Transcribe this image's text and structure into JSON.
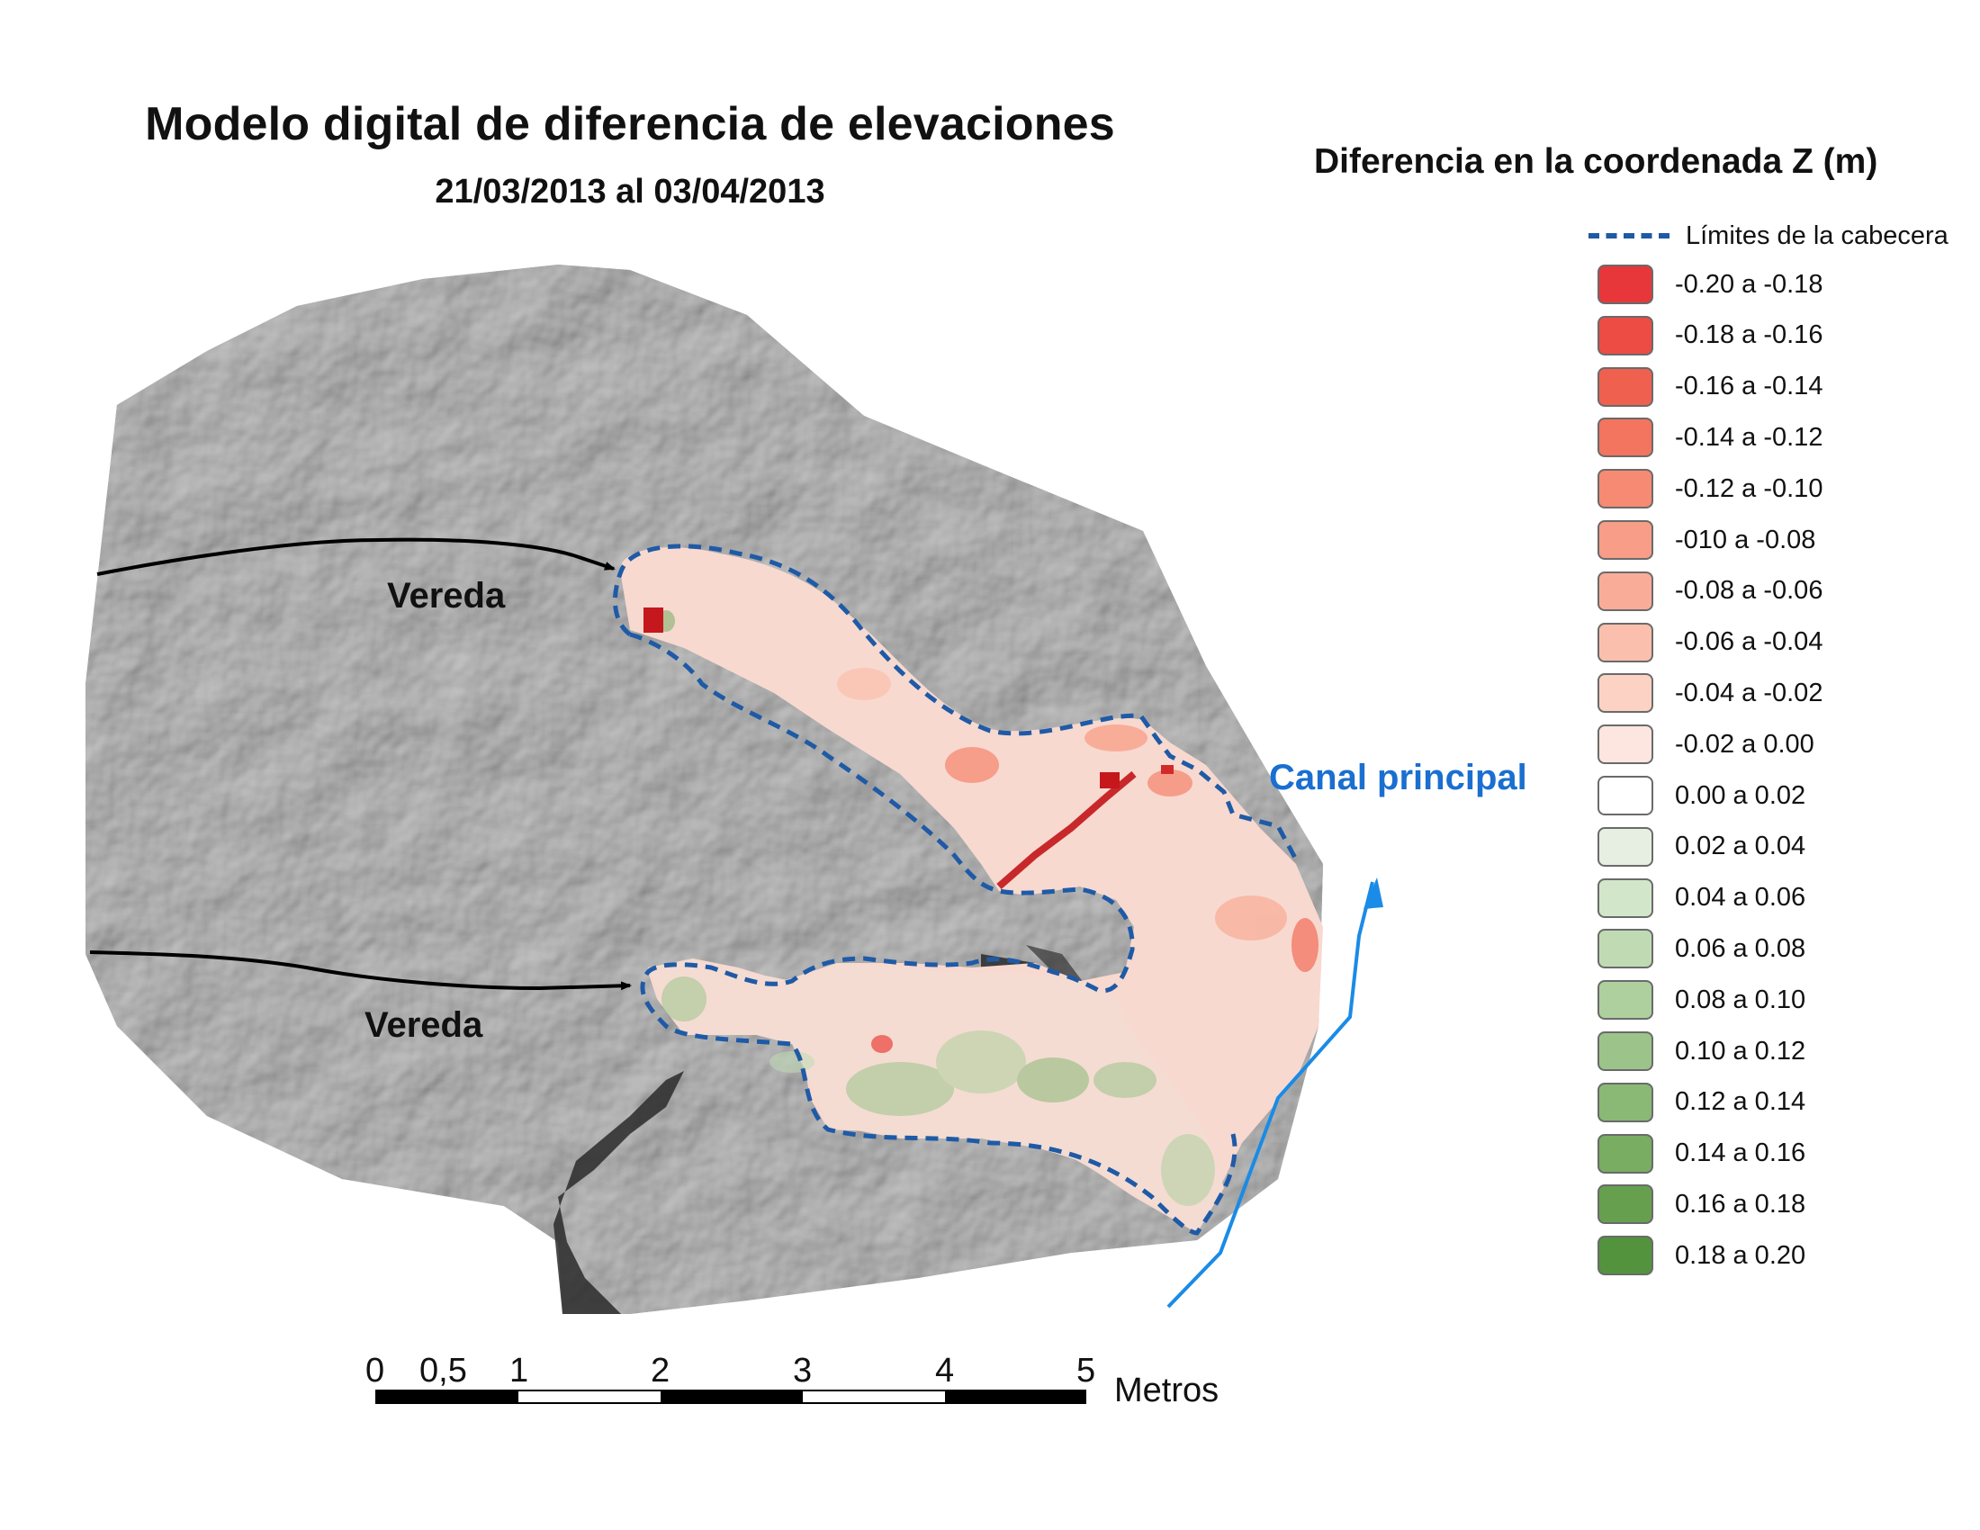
{
  "title": "Modelo digital de diferencia de elevaciones",
  "subtitle": "21/03/2013 al 03/04/2013",
  "legend": {
    "title": "Diferencia en la coordenada Z (m)",
    "boundary_label": "Límites de la cabecera",
    "boundary_color": "#1f5aa6",
    "classes": [
      {
        "label": "-0.20 a -0.18",
        "color": "#e8373a"
      },
      {
        "label": "-0.18 a -0.16",
        "color": "#ec4c44"
      },
      {
        "label": "-0.16 a -0.14",
        "color": "#f0604f"
      },
      {
        "label": "-0.14 a -0.12",
        "color": "#f3745f"
      },
      {
        "label": "-0.12 a -0.10",
        "color": "#f68a72"
      },
      {
        "label": "-010 a -0.08",
        "color": "#f89d87"
      },
      {
        "label": "-0.08 a -0.06",
        "color": "#f9ad99"
      },
      {
        "label": "-0.06 a -0.04",
        "color": "#fbc0ad"
      },
      {
        "label": "-0.04 a -0.02",
        "color": "#fcd2c4"
      },
      {
        "label": "-0.02 a 0.00",
        "color": "#fde6df"
      },
      {
        "label": "0.00 a 0.02",
        "color": "#ffffff"
      },
      {
        "label": "0.02 a 0.04",
        "color": "#e6efe1"
      },
      {
        "label": "0.04 a 0.06",
        "color": "#d2e6ca"
      },
      {
        "label": "0.06 a 0.08",
        "color": "#c0dbb4"
      },
      {
        "label": "0.08 a 0.10",
        "color": "#aed09f"
      },
      {
        "label": "0.10 a 0.12",
        "color": "#9cc48a"
      },
      {
        "label": "0.12 a 0.14",
        "color": "#8ab976"
      },
      {
        "label": "0.14 a 0.16",
        "color": "#78ad62"
      },
      {
        "label": "0.16 a 0.18",
        "color": "#66a04f"
      },
      {
        "label": "0.18 a 0.20",
        "color": "#53933d"
      }
    ]
  },
  "map": {
    "labels": {
      "path_upper": "Vereda",
      "path_lower": "Vereda",
      "channel": "Canal principal"
    },
    "channel_color": "#1a8be6",
    "hillshade_color": "#9a9a9a"
  },
  "scale_bar": {
    "ticks": [
      "0",
      "0,5",
      "1",
      "2",
      "3",
      "4",
      "5"
    ],
    "unit": "Metros"
  }
}
